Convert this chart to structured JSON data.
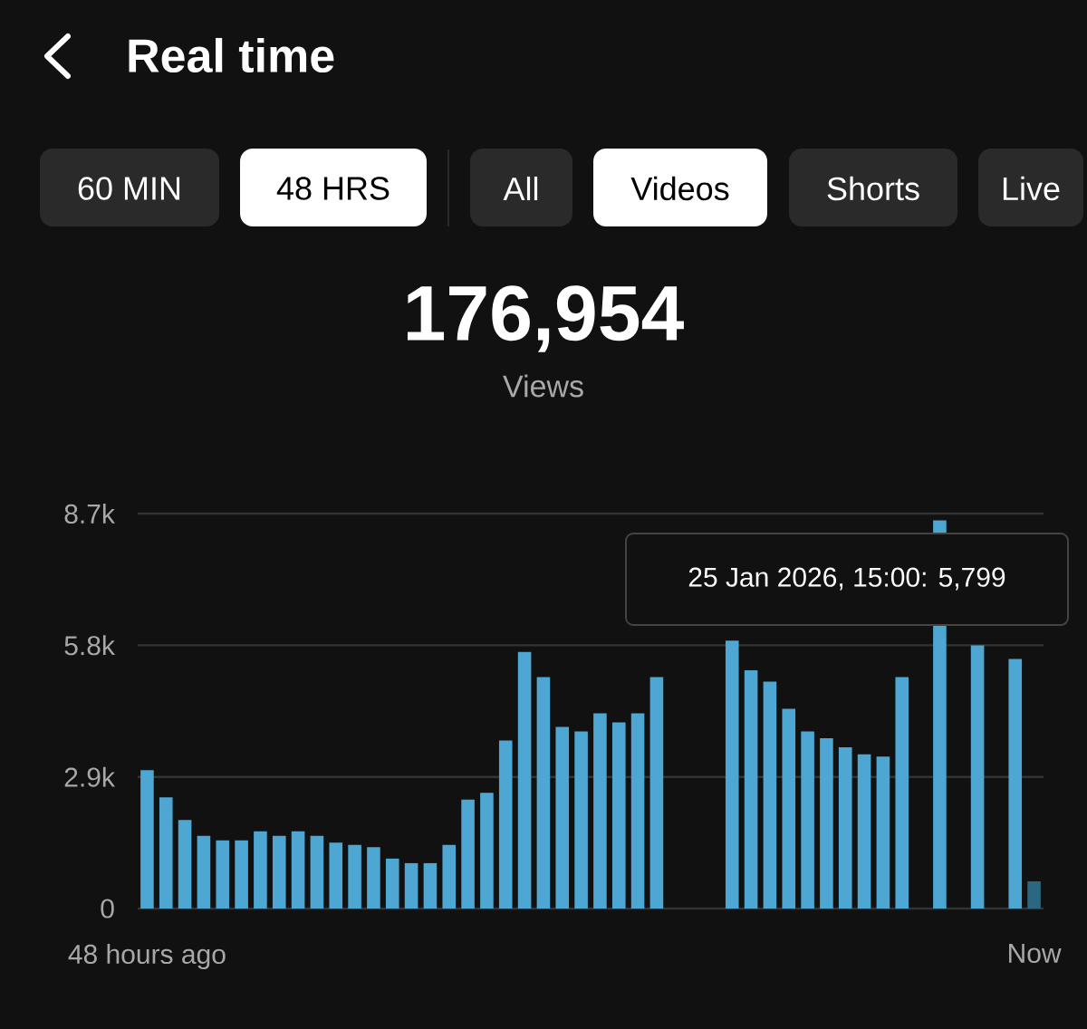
{
  "chart_data": {
    "type": "bar",
    "title": "Real time",
    "annotations": [
      "60 MIN",
      "48 HRS",
      "All",
      "Videos",
      "Shorts",
      "Live",
      "176,954",
      "Views",
      "25 Jan 2026, 15:00: 5,799"
    ],
    "categories": [
      "48 hours ago",
      null,
      null,
      null,
      null,
      null,
      null,
      null,
      null,
      null,
      null,
      null,
      null,
      null,
      null,
      null,
      null,
      null,
      null,
      null,
      null,
      null,
      null,
      null,
      null,
      null,
      null,
      null,
      null,
      null,
      null,
      null,
      null,
      null,
      null,
      null,
      null,
      null,
      null,
      null,
      null,
      null,
      null,
      null,
      null,
      null,
      null,
      "Now"
    ],
    "values": [
      3050,
      2450,
      1950,
      1600,
      1500,
      1500,
      1700,
      1600,
      1700,
      1600,
      1450,
      1400,
      1350,
      1100,
      1000,
      1000,
      1400,
      2400,
      2550,
      3700,
      5650,
      5100,
      4000,
      3900,
      4300,
      4100,
      4300,
      5100,
      null,
      null,
      null,
      5900,
      5250,
      5000,
      4400,
      3900,
      3750,
      3550,
      3400,
      3350,
      5100,
      null,
      8550,
      null,
      5799,
      null,
      5500,
      600
    ],
    "colors": [
      "#4ea7d3",
      "#4ea7d3",
      "#4ea7d3",
      "#4ea7d3",
      "#4ea7d3",
      "#4ea7d3",
      "#4ea7d3",
      "#4ea7d3",
      "#4ea7d3",
      "#4ea7d3",
      "#4ea7d3",
      "#4ea7d3",
      "#4ea7d3",
      "#4ea7d3",
      "#4ea7d3",
      "#4ea7d3",
      "#4ea7d3",
      "#4ea7d3",
      "#4ea7d3",
      "#4ea7d3",
      "#4ea7d3",
      "#4ea7d3",
      "#4ea7d3",
      "#4ea7d3",
      "#4ea7d3",
      "#4ea7d3",
      "#4ea7d3",
      "#4ea7d3",
      "#4ea7d3",
      "#4ea7d3",
      "#4ea7d3",
      "#4ea7d3",
      "#4ea7d3",
      "#4ea7d3",
      "#4ea7d3",
      "#4ea7d3",
      "#4ea7d3",
      "#4ea7d3",
      "#4ea7d3",
      "#4ea7d3",
      "#4ea7d3",
      "#4ea7d3",
      "#4ea7d3",
      "#4ea7d3",
      "#4ea7d3",
      "#4ea7d3",
      "#4ea7d3",
      "#2b6780"
    ],
    "ylim": [
      0,
      8700
    ],
    "yticks": [
      0,
      {
        "value": 2900,
        "label": "2.9k"
      },
      {
        "value": 5800,
        "label": "5.8k"
      },
      {
        "value": 8700,
        "label": "8.7k"
      }
    ],
    "grid": "y"
  }
}
